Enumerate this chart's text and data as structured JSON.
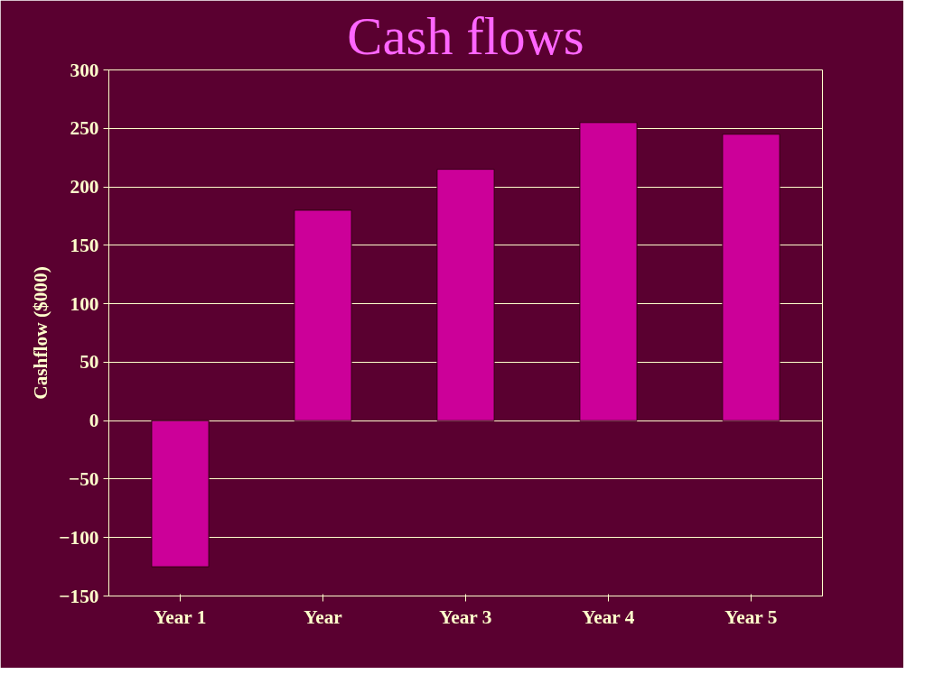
{
  "chart_data": {
    "type": "bar",
    "title": "Cash flows",
    "ylabel": "Cashflow ($000)",
    "categories": [
      "Year 1",
      "Year",
      "Year 3",
      "Year 4",
      "Year 5"
    ],
    "values": [
      -125,
      180,
      215,
      255,
      245
    ],
    "color": "#cc0099",
    "ylim": [
      -150,
      300
    ],
    "yticks": [
      -150,
      -100,
      -50,
      0,
      50,
      100,
      150,
      200,
      250,
      300
    ],
    "grid": "y"
  }
}
